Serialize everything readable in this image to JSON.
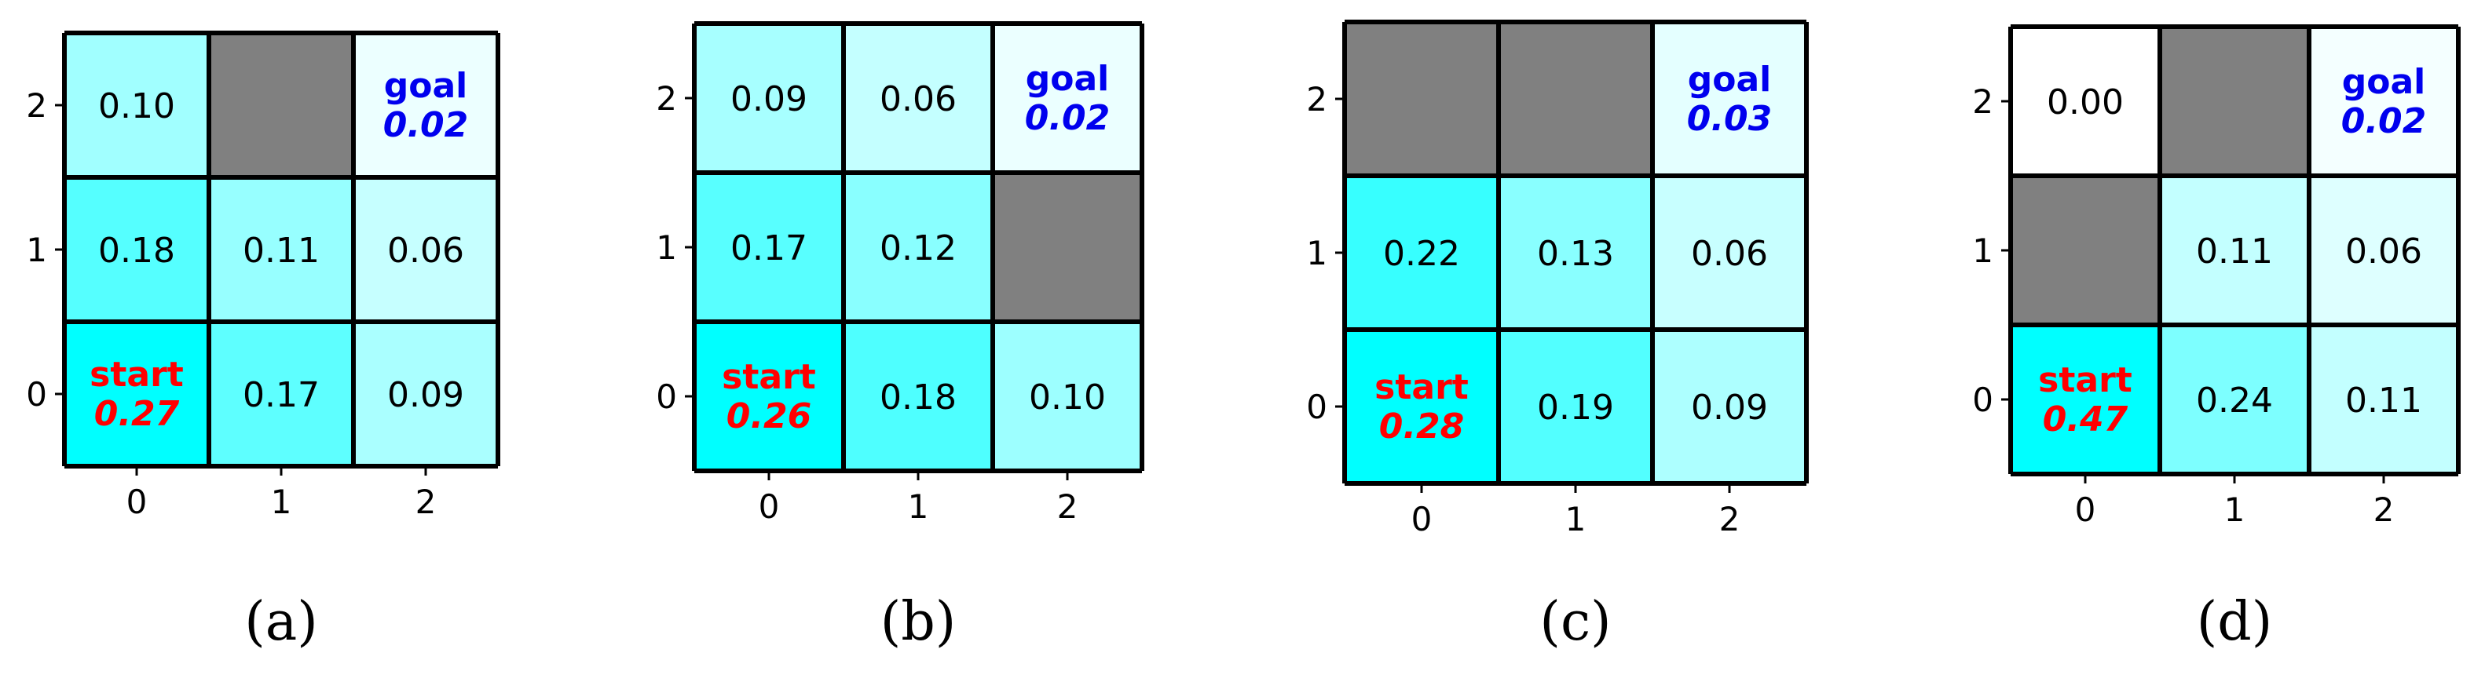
{
  "colors": {
    "wall": "#808080",
    "cmap_low": "#ffffff",
    "cmap_high": "#00ffff",
    "start_text": "#ff0000",
    "goal_text": "#0000ee",
    "grid_line": "#000000"
  },
  "chart_data": [
    {
      "type": "heatmap",
      "caption": "(a)",
      "x_ticks": [
        "0",
        "1",
        "2"
      ],
      "y_ticks": [
        "0",
        "1",
        "2"
      ],
      "start_label": "start",
      "goal_label": "goal",
      "start_cell": [
        0,
        0
      ],
      "goal_cell": [
        2,
        2
      ],
      "walls": [
        [
          1,
          2
        ]
      ],
      "cells": [
        {
          "x": 0,
          "y": 2,
          "value": 0.1,
          "text": "0.10"
        },
        {
          "x": 2,
          "y": 2,
          "value": 0.02,
          "text": "0.02"
        },
        {
          "x": 0,
          "y": 1,
          "value": 0.18,
          "text": "0.18"
        },
        {
          "x": 1,
          "y": 1,
          "value": 0.11,
          "text": "0.11"
        },
        {
          "x": 2,
          "y": 1,
          "value": 0.06,
          "text": "0.06"
        },
        {
          "x": 0,
          "y": 0,
          "value": 0.27,
          "text": "0.27"
        },
        {
          "x": 1,
          "y": 0,
          "value": 0.17,
          "text": "0.17"
        },
        {
          "x": 2,
          "y": 0,
          "value": 0.09,
          "text": "0.09"
        }
      ]
    },
    {
      "type": "heatmap",
      "caption": "(b)",
      "x_ticks": [
        "0",
        "1",
        "2"
      ],
      "y_ticks": [
        "0",
        "1",
        "2"
      ],
      "start_label": "start",
      "goal_label": "goal",
      "start_cell": [
        0,
        0
      ],
      "goal_cell": [
        2,
        2
      ],
      "walls": [
        [
          2,
          1
        ]
      ],
      "cells": [
        {
          "x": 0,
          "y": 2,
          "value": 0.09,
          "text": "0.09"
        },
        {
          "x": 1,
          "y": 2,
          "value": 0.06,
          "text": "0.06"
        },
        {
          "x": 2,
          "y": 2,
          "value": 0.02,
          "text": "0.02"
        },
        {
          "x": 0,
          "y": 1,
          "value": 0.17,
          "text": "0.17"
        },
        {
          "x": 1,
          "y": 1,
          "value": 0.12,
          "text": "0.12"
        },
        {
          "x": 0,
          "y": 0,
          "value": 0.26,
          "text": "0.26"
        },
        {
          "x": 1,
          "y": 0,
          "value": 0.18,
          "text": "0.18"
        },
        {
          "x": 2,
          "y": 0,
          "value": 0.1,
          "text": "0.10"
        }
      ]
    },
    {
      "type": "heatmap",
      "caption": "(c)",
      "x_ticks": [
        "0",
        "1",
        "2"
      ],
      "y_ticks": [
        "0",
        "1",
        "2"
      ],
      "start_label": "start",
      "goal_label": "goal",
      "start_cell": [
        0,
        0
      ],
      "goal_cell": [
        2,
        2
      ],
      "walls": [
        [
          0,
          2
        ],
        [
          1,
          2
        ]
      ],
      "cells": [
        {
          "x": 2,
          "y": 2,
          "value": 0.03,
          "text": "0.03"
        },
        {
          "x": 0,
          "y": 1,
          "value": 0.22,
          "text": "0.22"
        },
        {
          "x": 1,
          "y": 1,
          "value": 0.13,
          "text": "0.13"
        },
        {
          "x": 2,
          "y": 1,
          "value": 0.06,
          "text": "0.06"
        },
        {
          "x": 0,
          "y": 0,
          "value": 0.28,
          "text": "0.28"
        },
        {
          "x": 1,
          "y": 0,
          "value": 0.19,
          "text": "0.19"
        },
        {
          "x": 2,
          "y": 0,
          "value": 0.09,
          "text": "0.09"
        }
      ]
    },
    {
      "type": "heatmap",
      "caption": "(d)",
      "x_ticks": [
        "0",
        "1",
        "2"
      ],
      "y_ticks": [
        "0",
        "1",
        "2"
      ],
      "start_label": "start",
      "goal_label": "goal",
      "start_cell": [
        0,
        0
      ],
      "goal_cell": [
        2,
        2
      ],
      "walls": [
        [
          1,
          2
        ],
        [
          0,
          1
        ]
      ],
      "cells": [
        {
          "x": 0,
          "y": 2,
          "value": 0.0,
          "text": "0.00"
        },
        {
          "x": 2,
          "y": 2,
          "value": 0.02,
          "text": "0.02"
        },
        {
          "x": 1,
          "y": 1,
          "value": 0.11,
          "text": "0.11"
        },
        {
          "x": 2,
          "y": 1,
          "value": 0.06,
          "text": "0.06"
        },
        {
          "x": 0,
          "y": 0,
          "value": 0.47,
          "text": "0.47"
        },
        {
          "x": 1,
          "y": 0,
          "value": 0.24,
          "text": "0.24"
        },
        {
          "x": 2,
          "y": 0,
          "value": 0.11,
          "text": "0.11"
        }
      ]
    }
  ]
}
